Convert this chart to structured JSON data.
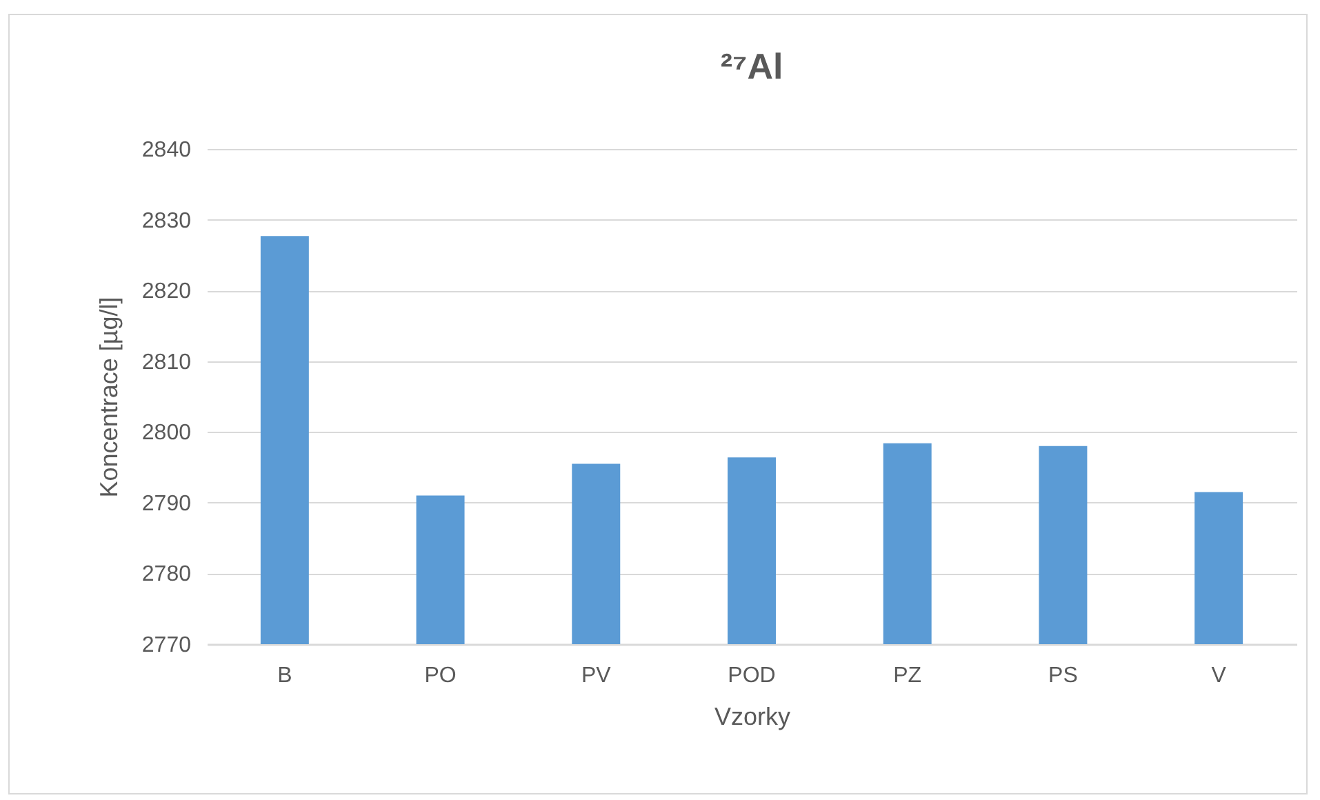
{
  "chart_data": {
    "type": "bar",
    "title": "²⁷Al",
    "xlabel": "Vzorky",
    "ylabel": "Koncentrace [µg/l]",
    "categories": [
      "B",
      "PO",
      "PV",
      "POD",
      "PZ",
      "PS",
      "V"
    ],
    "values": [
      2827.7,
      2791.0,
      2795.5,
      2796.4,
      2798.4,
      2798.0,
      2791.5
    ],
    "color": "#5b9bd5",
    "ylim": [
      2770,
      2840
    ],
    "yticks": [
      2770,
      2780,
      2790,
      2800,
      2810,
      2820,
      2830,
      2840
    ],
    "grid": true
  }
}
